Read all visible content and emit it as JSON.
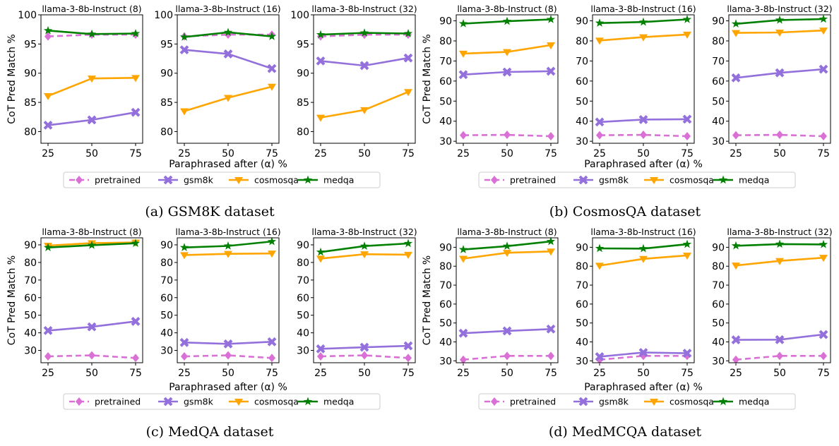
{
  "x_ticks": [
    25,
    50,
    75
  ],
  "xlabel": "Paraphrased after (α) %",
  "ylabel": "CoT Pred Match %",
  "legend": [
    "pretrained",
    "gsm8k",
    "cosmosqa",
    "medqa"
  ],
  "colors": {
    "pretrained": "#da70d6",
    "gsm8k": "#9370db",
    "cosmosqa": "#ffa500",
    "medqa": "#008000"
  },
  "chart_data": [
    {
      "type": "line",
      "caption": "(a) GSM8K dataset",
      "ylim": [
        78,
        100
      ],
      "yticks": [
        80,
        85,
        90,
        95,
        100
      ],
      "subplots": [
        {
          "title": "llama-3-8b-Instruct (8)",
          "x": [
            25,
            50,
            75
          ],
          "series": [
            {
              "name": "pretrained",
              "values": [
                96.3,
                96.6,
                96.6
              ]
            },
            {
              "name": "gsm8k",
              "values": [
                81.1,
                82.0,
                83.3
              ]
            },
            {
              "name": "cosmosqa",
              "values": [
                86.1,
                89.1,
                89.2
              ]
            },
            {
              "name": "medqa",
              "values": [
                97.3,
                96.7,
                96.8
              ]
            }
          ]
        },
        {
          "title": "llama-3-8b-Instruct (16)",
          "x": [
            25,
            50,
            75
          ],
          "series": [
            {
              "name": "pretrained",
              "values": [
                96.3,
                96.6,
                96.6
              ]
            },
            {
              "name": "gsm8k",
              "values": [
                94.0,
                93.3,
                90.8
              ]
            },
            {
              "name": "cosmosqa",
              "values": [
                83.5,
                85.8,
                87.7
              ]
            },
            {
              "name": "medqa",
              "values": [
                96.2,
                97.0,
                96.3
              ]
            }
          ]
        },
        {
          "title": "llama-3-8b-Instruct (32)",
          "x": [
            25,
            50,
            75
          ],
          "series": [
            {
              "name": "pretrained",
              "values": [
                96.3,
                96.6,
                96.6
              ]
            },
            {
              "name": "gsm8k",
              "values": [
                92.1,
                91.3,
                92.6
              ]
            },
            {
              "name": "cosmosqa",
              "values": [
                82.4,
                83.7,
                86.8
              ]
            },
            {
              "name": "medqa",
              "values": [
                96.6,
                96.9,
                96.8
              ]
            }
          ]
        }
      ]
    },
    {
      "type": "line",
      "caption": "(b) CosmosQA dataset",
      "ylim": [
        29,
        93
      ],
      "yticks": [
        30,
        40,
        50,
        60,
        70,
        80,
        90
      ],
      "subplots": [
        {
          "title": "llama-3-8b-Instruct (8)",
          "x": [
            25,
            50,
            75
          ],
          "series": [
            {
              "name": "pretrained",
              "values": [
                33.0,
                33.2,
                32.5
              ]
            },
            {
              "name": "gsm8k",
              "values": [
                63.2,
                64.5,
                64.9
              ]
            },
            {
              "name": "cosmosqa",
              "values": [
                73.7,
                74.5,
                77.9
              ]
            },
            {
              "name": "medqa",
              "values": [
                88.6,
                89.8,
                90.7
              ]
            }
          ]
        },
        {
          "title": "llama-3-8b-Instruct (16)",
          "x": [
            25,
            50,
            75
          ],
          "series": [
            {
              "name": "pretrained",
              "values": [
                33.0,
                33.2,
                32.5
              ]
            },
            {
              "name": "gsm8k",
              "values": [
                39.6,
                40.8,
                41.0
              ]
            },
            {
              "name": "cosmosqa",
              "values": [
                80.2,
                81.9,
                83.2
              ]
            },
            {
              "name": "medqa",
              "values": [
                88.9,
                89.4,
                90.7
              ]
            }
          ]
        },
        {
          "title": "llama-3-8b-Instruct (32)",
          "x": [
            25,
            50,
            75
          ],
          "series": [
            {
              "name": "pretrained",
              "values": [
                33.0,
                33.2,
                32.5
              ]
            },
            {
              "name": "gsm8k",
              "values": [
                61.6,
                64.1,
                65.9
              ]
            },
            {
              "name": "cosmosqa",
              "values": [
                84.0,
                84.2,
                85.2
              ]
            },
            {
              "name": "medqa",
              "values": [
                88.5,
                90.4,
                90.9
              ]
            }
          ]
        }
      ]
    },
    {
      "type": "line",
      "caption": "(c) MedQA dataset",
      "ylim": [
        23,
        94
      ],
      "yticks": [
        30,
        40,
        50,
        60,
        70,
        80,
        90
      ],
      "subplots": [
        {
          "title": "llama-3-8b-Instruct (8)",
          "x": [
            25,
            50,
            75
          ],
          "series": [
            {
              "name": "pretrained",
              "values": [
                26.6,
                27.2,
                25.7
              ]
            },
            {
              "name": "gsm8k",
              "values": [
                41.3,
                43.4,
                46.5
              ]
            },
            {
              "name": "cosmosqa",
              "values": [
                89.6,
                91.0,
                91.4
              ]
            },
            {
              "name": "medqa",
              "values": [
                88.5,
                89.8,
                90.9
              ]
            }
          ]
        },
        {
          "title": "llama-3-8b-Instruct (16)",
          "x": [
            25,
            50,
            75
          ],
          "series": [
            {
              "name": "pretrained",
              "values": [
                26.6,
                27.2,
                25.7
              ]
            },
            {
              "name": "gsm8k",
              "values": [
                34.5,
                33.7,
                34.9
              ]
            },
            {
              "name": "cosmosqa",
              "values": [
                84.2,
                84.9,
                85.1
              ]
            },
            {
              "name": "medqa",
              "values": [
                88.5,
                89.4,
                91.9
              ]
            }
          ]
        },
        {
          "title": "llama-3-8b-Instruct (32)",
          "x": [
            25,
            50,
            75
          ],
          "series": [
            {
              "name": "pretrained",
              "values": [
                26.6,
                27.2,
                25.7
              ]
            },
            {
              "name": "gsm8k",
              "values": [
                30.9,
                31.8,
                32.6
              ]
            },
            {
              "name": "cosmosqa",
              "values": [
                82.2,
                84.7,
                84.4
              ]
            },
            {
              "name": "medqa",
              "values": [
                85.9,
                89.3,
                90.8
              ]
            }
          ]
        }
      ]
    },
    {
      "type": "line",
      "caption": "(d) MedMCQA dataset",
      "ylim": [
        29,
        95
      ],
      "yticks": [
        30,
        40,
        50,
        60,
        70,
        80,
        90
      ],
      "subplots": [
        {
          "title": "llama-3-8b-Instruct (8)",
          "x": [
            25,
            50,
            75
          ],
          "series": [
            {
              "name": "pretrained",
              "values": [
                30.6,
                32.6,
                32.6
              ]
            },
            {
              "name": "gsm8k",
              "values": [
                44.6,
                45.8,
                46.8
              ]
            },
            {
              "name": "cosmosqa",
              "values": [
                84.0,
                87.1,
                87.8
              ]
            },
            {
              "name": "medqa",
              "values": [
                88.8,
                90.6,
                93.1
              ]
            }
          ]
        },
        {
          "title": "llama-3-8b-Instruct (16)",
          "x": [
            25,
            50,
            75
          ],
          "series": [
            {
              "name": "pretrained",
              "values": [
                30.6,
                32.6,
                32.6
              ]
            },
            {
              "name": "gsm8k",
              "values": [
                32.2,
                34.4,
                34.0
              ]
            },
            {
              "name": "cosmosqa",
              "values": [
                80.3,
                83.9,
                85.7
              ]
            },
            {
              "name": "medqa",
              "values": [
                89.4,
                89.3,
                91.6
              ]
            }
          ]
        },
        {
          "title": "llama-3-8b-Instruct (32)",
          "x": [
            25,
            50,
            75
          ],
          "series": [
            {
              "name": "pretrained",
              "values": [
                30.6,
                32.6,
                32.6
              ]
            },
            {
              "name": "gsm8k",
              "values": [
                41.1,
                41.2,
                43.9
              ]
            },
            {
              "name": "cosmosqa",
              "values": [
                80.4,
                82.8,
                84.5
              ]
            },
            {
              "name": "medqa",
              "values": [
                90.8,
                91.7,
                91.5
              ]
            }
          ]
        }
      ]
    }
  ]
}
